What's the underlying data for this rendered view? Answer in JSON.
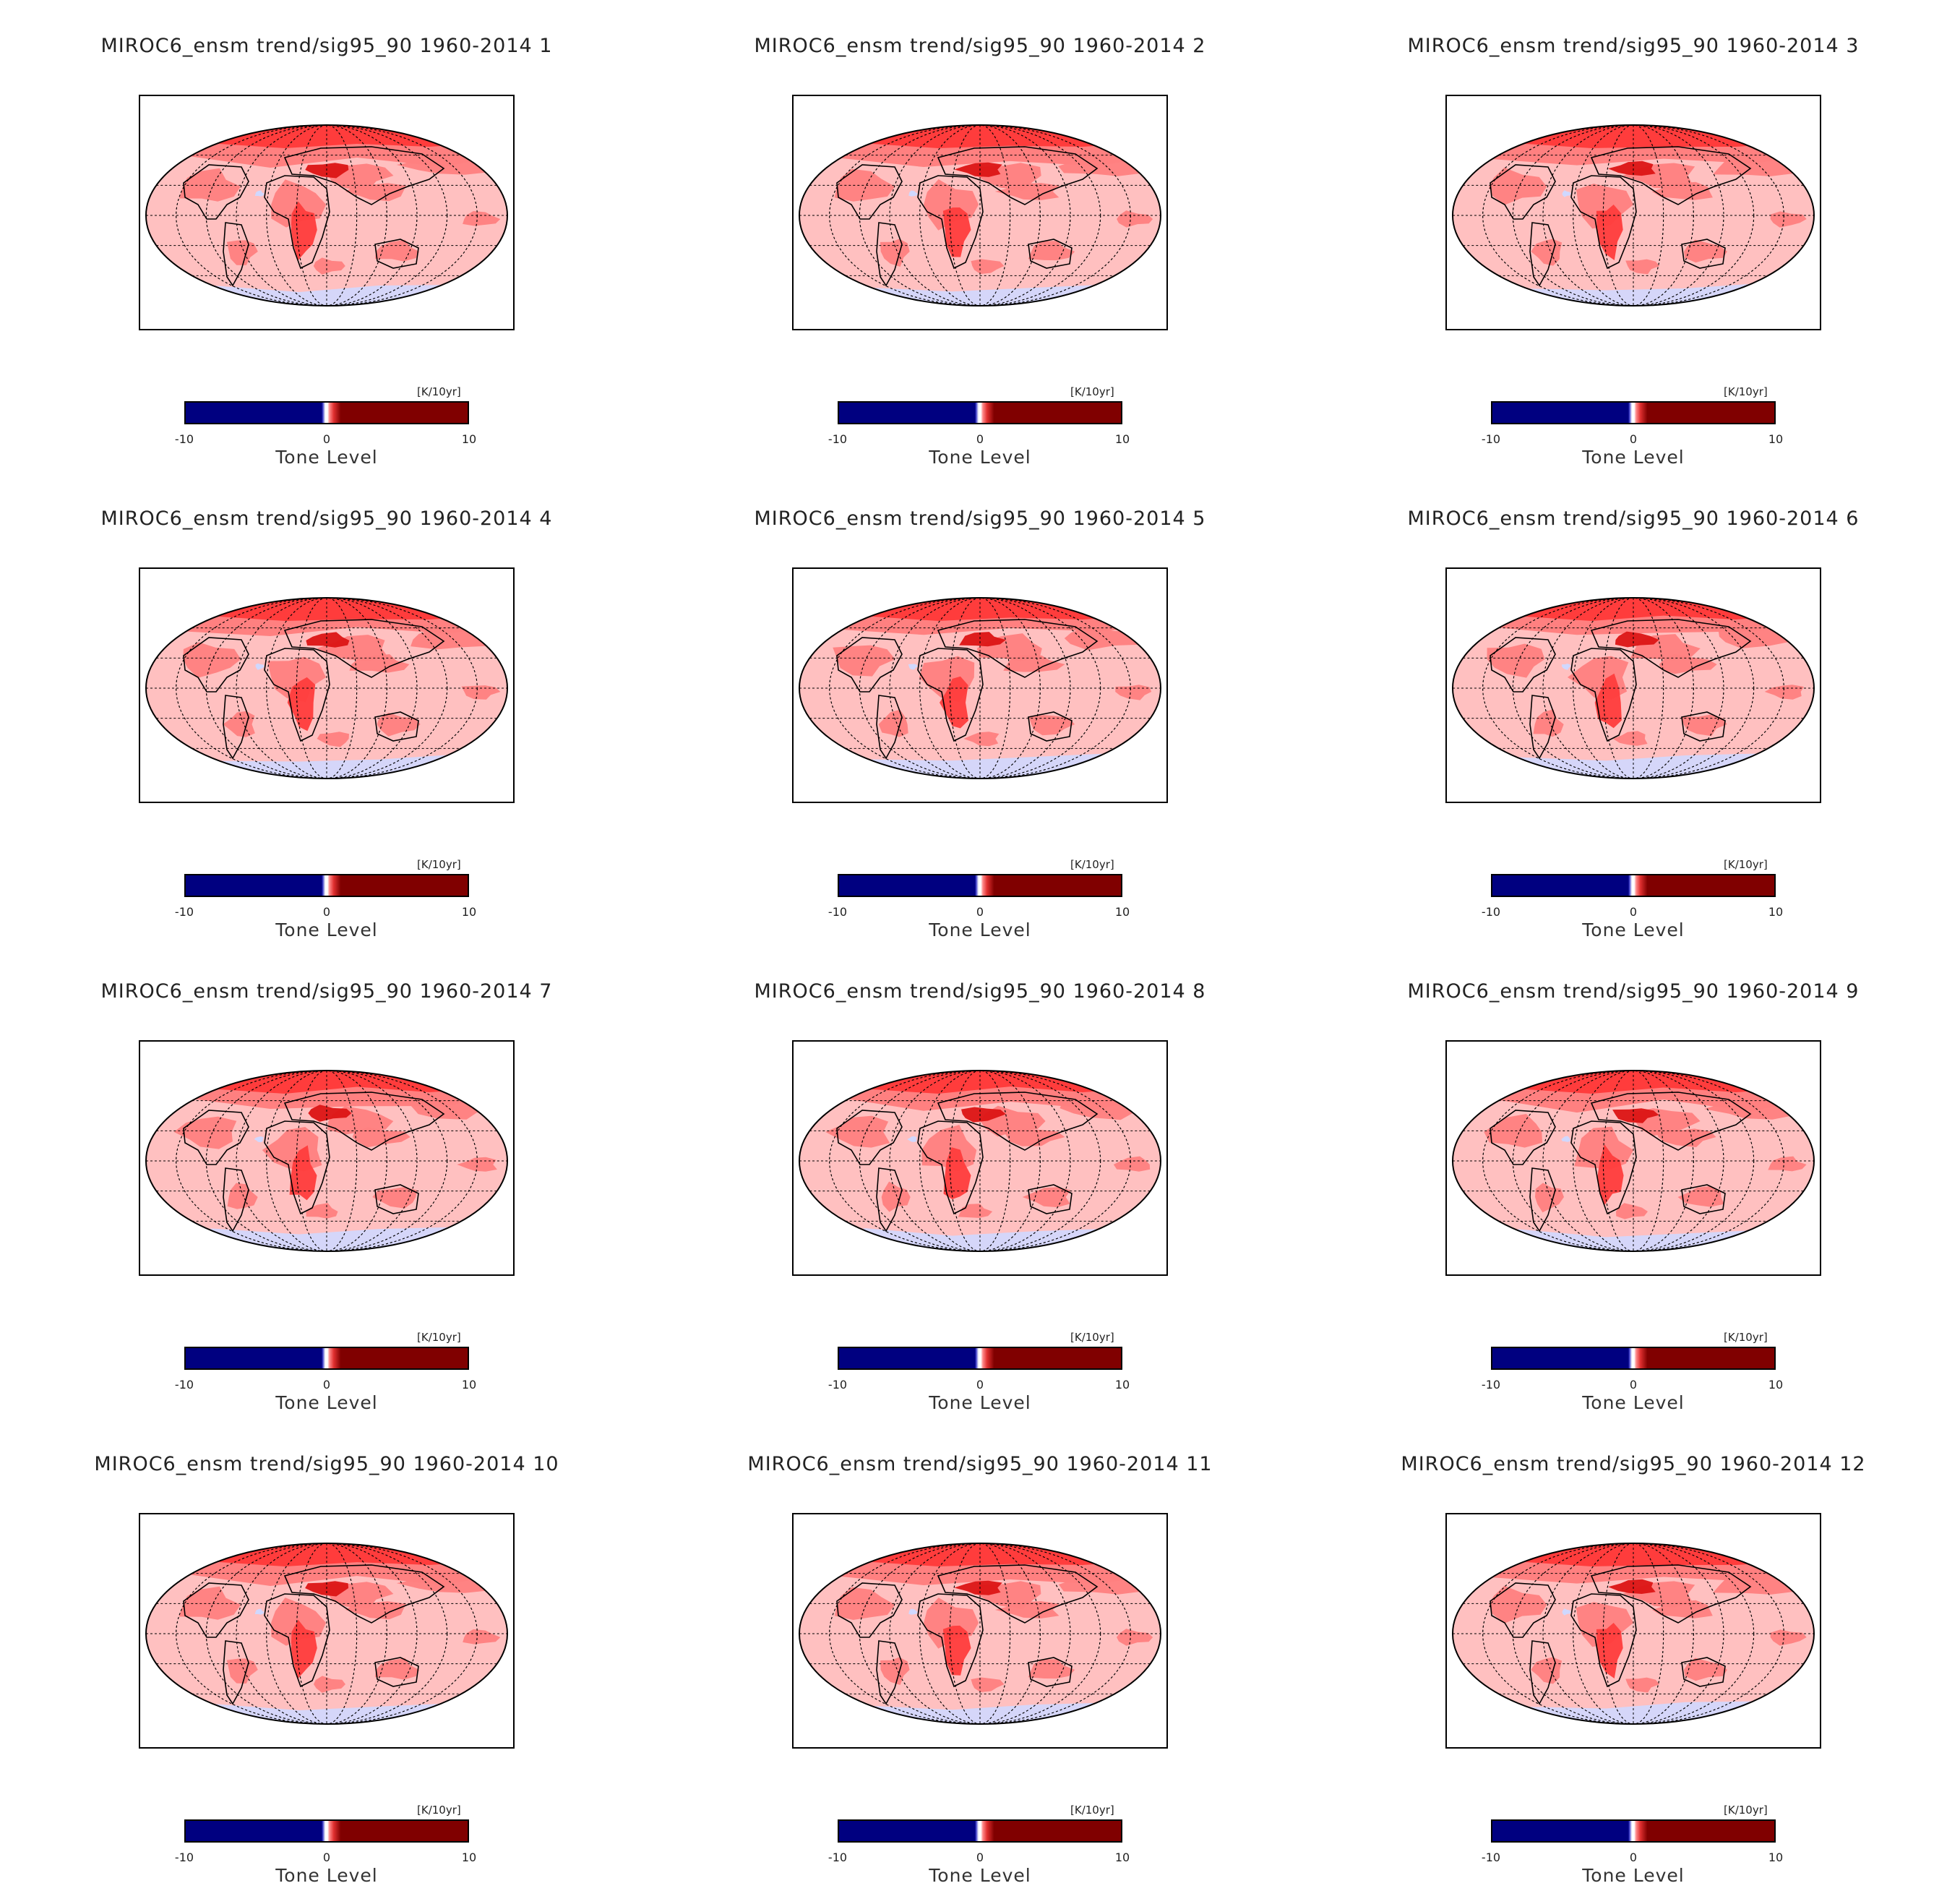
{
  "chart_data": {
    "type": "heatmap",
    "projection": "Hammer (global map)",
    "panels": [
      {
        "title": "MIROC6_ensm trend/sig95_90 1960-2014 1"
      },
      {
        "title": "MIROC6_ensm trend/sig95_90 1960-2014 2"
      },
      {
        "title": "MIROC6_ensm trend/sig95_90 1960-2014 3"
      },
      {
        "title": "MIROC6_ensm trend/sig95_90 1960-2014 4"
      },
      {
        "title": "MIROC6_ensm trend/sig95_90 1960-2014 5"
      },
      {
        "title": "MIROC6_ensm trend/sig95_90 1960-2014 6"
      },
      {
        "title": "MIROC6_ensm trend/sig95_90 1960-2014 7"
      },
      {
        "title": "MIROC6_ensm trend/sig95_90 1960-2014 8"
      },
      {
        "title": "MIROC6_ensm trend/sig95_90 1960-2014 9"
      },
      {
        "title": "MIROC6_ensm trend/sig95_90 1960-2014 10"
      },
      {
        "title": "MIROC6_ensm trend/sig95_90 1960-2014 11"
      },
      {
        "title": "MIROC6_ensm trend/sig95_90 1960-2014 12"
      }
    ],
    "colorbar": {
      "unit": "[K/10yr]",
      "min": -10,
      "max": 10,
      "ticks": [
        "-10",
        "0",
        "10"
      ],
      "label": "Tone Level",
      "colors": {
        "low": "#000080",
        "mid": "#ffffff",
        "high": "#800000"
      }
    },
    "map_colors": {
      "weak_warming": "#ffc0c0",
      "moderate_warming": "#ff8080",
      "strong_warming": "#ff3c3c",
      "very_strong_warming": "#dc1414",
      "weak_cooling": "#d0d8ff"
    }
  }
}
